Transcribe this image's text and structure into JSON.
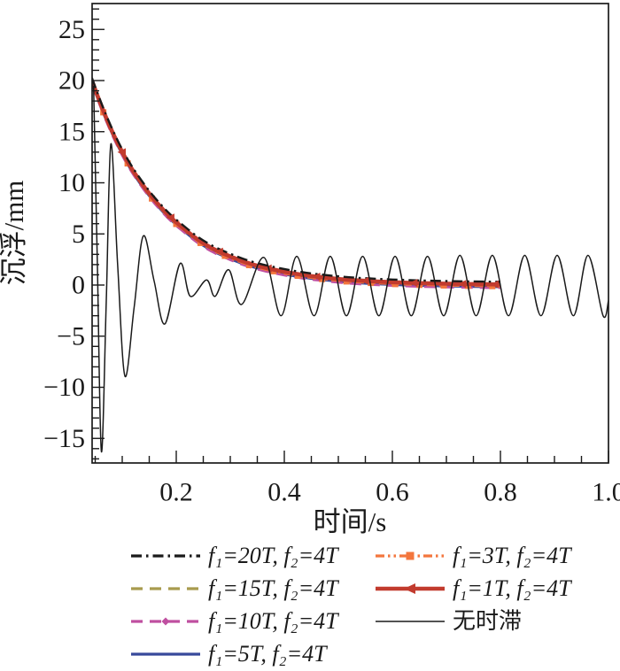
{
  "figure": {
    "background": "#ffffff"
  },
  "chart_data": {
    "type": "line",
    "title": "",
    "xlabel": "时间/s",
    "ylabel": "沉浮/mm",
    "xlim": [
      0.044,
      1.0
    ],
    "ylim": [
      -17.4,
      27.5
    ],
    "grid": false,
    "legend_position": "below",
    "xticks": [
      {
        "value": 0.2,
        "label": "0.2"
      },
      {
        "value": 0.4,
        "label": "0.4"
      },
      {
        "value": 0.6,
        "label": "0.6"
      },
      {
        "value": 0.8,
        "label": "0.8"
      },
      {
        "value": 1.0,
        "label": "1.0"
      }
    ],
    "yticks": [
      {
        "value": 25,
        "label": "25"
      },
      {
        "value": 20,
        "label": "20"
      },
      {
        "value": 15,
        "label": "15"
      },
      {
        "value": 10,
        "label": "10"
      },
      {
        "value": 5,
        "label": "5"
      },
      {
        "value": 0,
        "label": "0"
      },
      {
        "value": -5,
        "label": "−5"
      },
      {
        "value": -10,
        "label": "−10"
      },
      {
        "value": -15,
        "label": "−15"
      }
    ],
    "x_minor_tick_step": 0.05,
    "y_minor_tick_step": 1,
    "series": [
      {
        "name": "f₁=20T, f₂=4T",
        "color": "#1a1a1a",
        "style": "dash-dot",
        "width": 2.4,
        "marker": "none",
        "data_ref": "delayed"
      },
      {
        "name": "f₁=15T, f₂=4T",
        "color": "#a89b4e",
        "style": "dashed",
        "width": 2.5,
        "marker": "none",
        "data_ref": "delayed"
      },
      {
        "name": "f₁=10T, f₂=4T",
        "color": "#bf4fa0",
        "style": "dashed",
        "width": 2.5,
        "marker": "diamond",
        "data_ref": "delayed"
      },
      {
        "name": "f₁=5T, f₂=4T",
        "color": "#37499b",
        "style": "solid",
        "width": 2.5,
        "marker": "none",
        "data_ref": "delayed"
      },
      {
        "name": "f₁=3T, f₂=4T",
        "color": "#f3763d",
        "style": "dash-dot-dot",
        "width": 2.5,
        "marker": "square",
        "data_ref": "delayed"
      },
      {
        "name": "f₁=1T, f₂=4T",
        "color": "#c23b2e",
        "style": "solid",
        "width": 4.6,
        "marker": "triangle-left",
        "data_ref": "delayed"
      },
      {
        "name": "无时滞",
        "color": "#1a1a1a",
        "style": "solid",
        "width": 1.5,
        "marker": "none",
        "data_ref": "no_delay"
      }
    ],
    "legend_columns": {
      "left": [
        0,
        1,
        2,
        3
      ],
      "right": [
        4,
        5,
        6
      ]
    },
    "curves": {
      "delayed": {
        "note": "all six time-delay curves coincide: exponential decay from 20 mm to 0, t = 0.044 to 0.8 s",
        "points": [
          [
            0.044,
            20.0
          ],
          [
            0.055,
            18.4
          ],
          [
            0.07,
            16.4
          ],
          [
            0.085,
            14.6
          ],
          [
            0.1,
            13.0
          ],
          [
            0.115,
            11.6
          ],
          [
            0.13,
            10.4
          ],
          [
            0.15,
            8.95
          ],
          [
            0.17,
            7.7
          ],
          [
            0.19,
            6.6
          ],
          [
            0.21,
            5.7
          ],
          [
            0.24,
            4.45
          ],
          [
            0.27,
            3.5
          ],
          [
            0.3,
            2.8
          ],
          [
            0.33,
            2.2
          ],
          [
            0.36,
            1.75
          ],
          [
            0.4,
            1.3
          ],
          [
            0.44,
            0.95
          ],
          [
            0.48,
            0.7
          ],
          [
            0.52,
            0.5
          ],
          [
            0.56,
            0.38
          ],
          [
            0.6,
            0.28
          ],
          [
            0.65,
            0.19
          ],
          [
            0.7,
            0.13
          ],
          [
            0.75,
            0.09
          ],
          [
            0.8,
            0.06
          ]
        ]
      },
      "no_delay": {
        "note": "undelayed response: decaying transient then steady oscillation, amplitude ~3 mm, period ~0.06 s",
        "points": [
          [
            0.047,
            19.5
          ],
          [
            0.054,
            2.0
          ],
          [
            0.0615,
            -16.3
          ],
          [
            0.0705,
            -1.5
          ],
          [
            0.079,
            13.8
          ],
          [
            0.0915,
            2.0
          ],
          [
            0.105,
            -8.9
          ],
          [
            0.122,
            -2.2
          ],
          [
            0.139,
            4.8
          ],
          [
            0.159,
            0.4
          ],
          [
            0.179,
            -3.8
          ],
          [
            0.207,
            2.1
          ],
          [
            0.226,
            -1.1
          ],
          [
            0.256,
            0.5
          ],
          [
            0.272,
            -1.1
          ],
          [
            0.297,
            1.5
          ],
          [
            0.321,
            -1.9
          ],
          [
            0.362,
            2.7
          ],
          [
            0.394,
            -3.0
          ],
          [
            0.423,
            2.8
          ],
          [
            0.455,
            -3.0
          ],
          [
            0.485,
            2.8
          ],
          [
            0.515,
            -3.0
          ],
          [
            0.545,
            2.8
          ],
          [
            0.575,
            -3.0
          ],
          [
            0.605,
            2.8
          ],
          [
            0.635,
            -3.0
          ],
          [
            0.665,
            2.8
          ],
          [
            0.695,
            -3.0
          ],
          [
            0.725,
            2.9
          ],
          [
            0.755,
            -3.0
          ],
          [
            0.785,
            2.9
          ],
          [
            0.815,
            -3.0
          ],
          [
            0.845,
            2.9
          ],
          [
            0.875,
            -3.0
          ],
          [
            0.905,
            2.9
          ],
          [
            0.935,
            -3.0
          ],
          [
            0.962,
            2.9
          ],
          [
            0.99,
            -3.0
          ],
          [
            1.0,
            -1.5
          ]
        ]
      }
    }
  }
}
